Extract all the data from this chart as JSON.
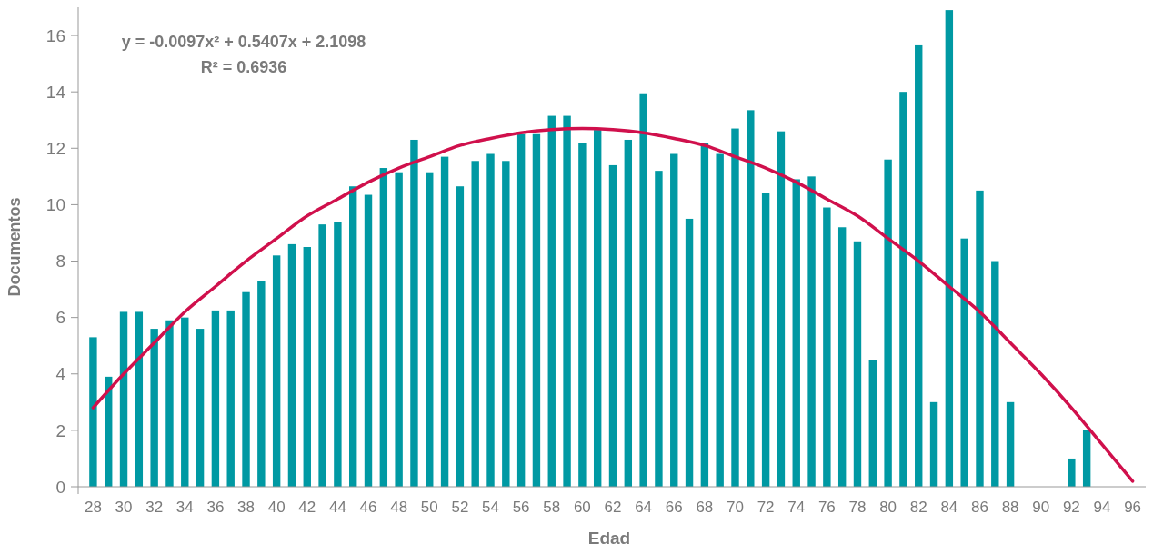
{
  "chart_data": {
    "type": "bar",
    "xlabel": "Edad",
    "ylabel": "Documentos",
    "categories": [
      "28",
      null,
      "30",
      null,
      "32",
      null,
      "34",
      null,
      "36",
      null,
      "38",
      null,
      "40",
      null,
      "42",
      null,
      "44",
      null,
      "46",
      null,
      "48",
      null,
      "50",
      null,
      "52",
      null,
      "54",
      null,
      "56",
      null,
      "58",
      null,
      "60",
      null,
      "62",
      null,
      "64",
      null,
      "66",
      null,
      "68",
      null,
      "70",
      null,
      "72",
      null,
      "74",
      null,
      "76",
      null,
      "78",
      null,
      "80",
      null,
      "82",
      null,
      "84",
      null,
      "86",
      null,
      "88",
      null,
      "90",
      null,
      "92",
      null,
      "94",
      null,
      "96"
    ],
    "series": [
      {
        "color": "#0099a3",
        "values": [
          5.3,
          3.9,
          6.2,
          6.2,
          5.6,
          5.9,
          6.0,
          5.6,
          6.25,
          6.25,
          6.9,
          7.3,
          8.2,
          8.6,
          8.5,
          9.3,
          9.4,
          10.65,
          10.35,
          11.3,
          11.15,
          12.3,
          11.15,
          11.7,
          10.65,
          11.55,
          11.8,
          11.55,
          12.5,
          12.5,
          13.15,
          13.15,
          12.2,
          12.65,
          11.4,
          12.3,
          13.95,
          11.2,
          11.8,
          9.5,
          12.2,
          11.8,
          12.7,
          13.35,
          10.4,
          12.6,
          10.9,
          11.0,
          9.9,
          9.2,
          8.7,
          4.5,
          11.6,
          14.0,
          15.65,
          3.0,
          16.9,
          8.8,
          10.5,
          8.0,
          3.0,
          null,
          null,
          null,
          1.0,
          2.0,
          null,
          null,
          null
        ]
      },
      {
        "type": "line",
        "color": "#d0104c",
        "x": [
          "28",
          "30",
          "32",
          "34",
          "36",
          "38",
          "40",
          "42",
          "44",
          "46",
          "48",
          "50",
          "52",
          "54",
          "56",
          "58",
          "60",
          "62",
          "64",
          "66",
          "68",
          "70",
          "72",
          "74",
          "76",
          "78",
          "80",
          "82",
          "84",
          "86",
          "88",
          "90",
          "92",
          "94",
          "96"
        ],
        "values": [
          2.8,
          4.0,
          5.1,
          6.2,
          7.1,
          8.0,
          8.8,
          9.6,
          10.2,
          10.8,
          11.3,
          11.7,
          12.1,
          12.35,
          12.55,
          12.66,
          12.7,
          12.66,
          12.55,
          12.35,
          12.1,
          11.7,
          11.3,
          10.8,
          10.2,
          9.6,
          8.8,
          8.0,
          7.1,
          6.2,
          5.1,
          4.0,
          2.8,
          1.5,
          0.2
        ]
      }
    ],
    "ylim": [
      0,
      17
    ],
    "yticks": [
      0,
      2,
      4,
      6,
      8,
      10,
      12,
      14,
      16
    ],
    "grid": false,
    "marker": "none",
    "annotations": [
      "y = -0.0097x² + 0.5407x + 2.1098",
      "R² = 0.6936"
    ]
  }
}
